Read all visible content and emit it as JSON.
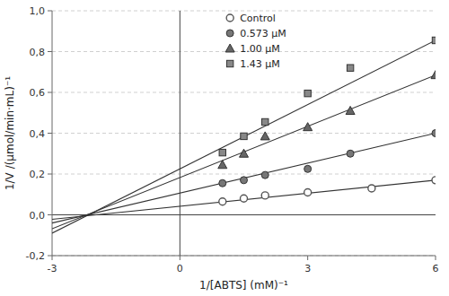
{
  "chart_data": {
    "type": "scatter",
    "xlabel": "1/[ABTS] (mM)⁻¹",
    "ylabel": "1/V /(μmol/min·mL)⁻¹",
    "xlim": [
      -3,
      6
    ],
    "ylim": [
      -0.2,
      1.0
    ],
    "xticks": [
      -3,
      0,
      3,
      6
    ],
    "yticks": [
      {
        "value": -0.2,
        "label": "-0,2"
      },
      {
        "value": 0.0,
        "label": "0,0"
      },
      {
        "value": 0.2,
        "label": "0,2"
      },
      {
        "value": 0.4,
        "label": "0,4"
      },
      {
        "value": 0.6,
        "label": "0,6"
      },
      {
        "value": 0.8,
        "label": "0,8"
      },
      {
        "value": 1.0,
        "label": "1,0"
      }
    ],
    "grid": true,
    "legend": "top",
    "series": [
      {
        "name": "Control",
        "color": "#555555",
        "marker": "circle-open",
        "x": [
          1.0,
          1.5,
          2.0,
          3.0,
          4.5,
          6.0
        ],
        "values": [
          0.065,
          0.08,
          0.095,
          0.11,
          0.13,
          0.17
        ],
        "fit_x": [
          -3,
          6
        ],
        "fit_values": [
          -0.022,
          0.17
        ]
      },
      {
        "name": "0.573 μM",
        "color": "#777777",
        "marker": "circle",
        "x": [
          1.0,
          1.5,
          2.0,
          3.0,
          4.0,
          6.0
        ],
        "values": [
          0.155,
          0.17,
          0.195,
          0.225,
          0.3,
          0.4
        ],
        "fit_x": [
          -3,
          6
        ],
        "fit_values": [
          -0.04,
          0.4
        ]
      },
      {
        "name": "1.00 μM",
        "color": "#666666",
        "marker": "triangle",
        "x": [
          1.0,
          1.5,
          2.0,
          3.0,
          4.0,
          6.0
        ],
        "values": [
          0.245,
          0.3,
          0.385,
          0.43,
          0.51,
          0.685
        ],
        "fit_x": [
          -3,
          6
        ],
        "fit_values": [
          -0.068,
          0.685
        ]
      },
      {
        "name": "1.43 μM",
        "color": "#888888",
        "marker": "square",
        "x": [
          1.0,
          1.5,
          2.0,
          3.0,
          4.0,
          6.0
        ],
        "values": [
          0.305,
          0.385,
          0.455,
          0.595,
          0.72,
          0.855
        ],
        "fit_x": [
          -3,
          6
        ],
        "fit_values": [
          -0.09,
          0.855
        ]
      }
    ]
  }
}
